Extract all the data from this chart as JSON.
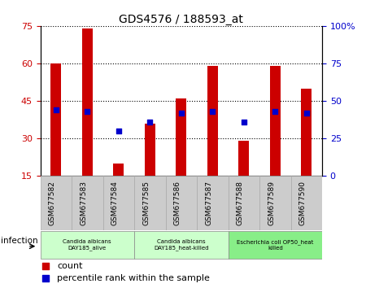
{
  "title": "GDS4576 / 188593_at",
  "samples": [
    "GSM677582",
    "GSM677583",
    "GSM677584",
    "GSM677585",
    "GSM677586",
    "GSM677587",
    "GSM677588",
    "GSM677589",
    "GSM677590"
  ],
  "counts": [
    60,
    74,
    20,
    36,
    46,
    59,
    29,
    59,
    50
  ],
  "percentile_ranks": [
    44,
    43,
    30,
    36,
    42,
    43,
    36,
    43,
    42
  ],
  "ylim_left": [
    15,
    75
  ],
  "ylim_right": [
    0,
    100
  ],
  "yticks_left": [
    15,
    30,
    45,
    60,
    75
  ],
  "yticks_right": [
    0,
    25,
    50,
    75,
    100
  ],
  "yticklabels_right": [
    "0",
    "25",
    "50",
    "75",
    "100%"
  ],
  "bar_color": "#cc0000",
  "dot_color": "#0000cc",
  "bar_width": 0.35,
  "groups": [
    {
      "label": "Candida albicans\nDAY185_alive",
      "start": 0,
      "end": 2,
      "color": "#ccffcc"
    },
    {
      "label": "Candida albicans\nDAY185_heat-killed",
      "start": 3,
      "end": 5,
      "color": "#ccffcc"
    },
    {
      "label": "Escherichia coli OP50_heat\nkilled",
      "start": 6,
      "end": 8,
      "color": "#88ee88"
    }
  ],
  "group_label": "infection",
  "legend_count_label": "count",
  "legend_pct_label": "percentile rank within the sample",
  "background_color": "#ffffff",
  "xtick_bg_color": "#cccccc",
  "tick_label_color_left": "#cc0000",
  "tick_label_color_right": "#0000cc",
  "grid_color": "#000000"
}
